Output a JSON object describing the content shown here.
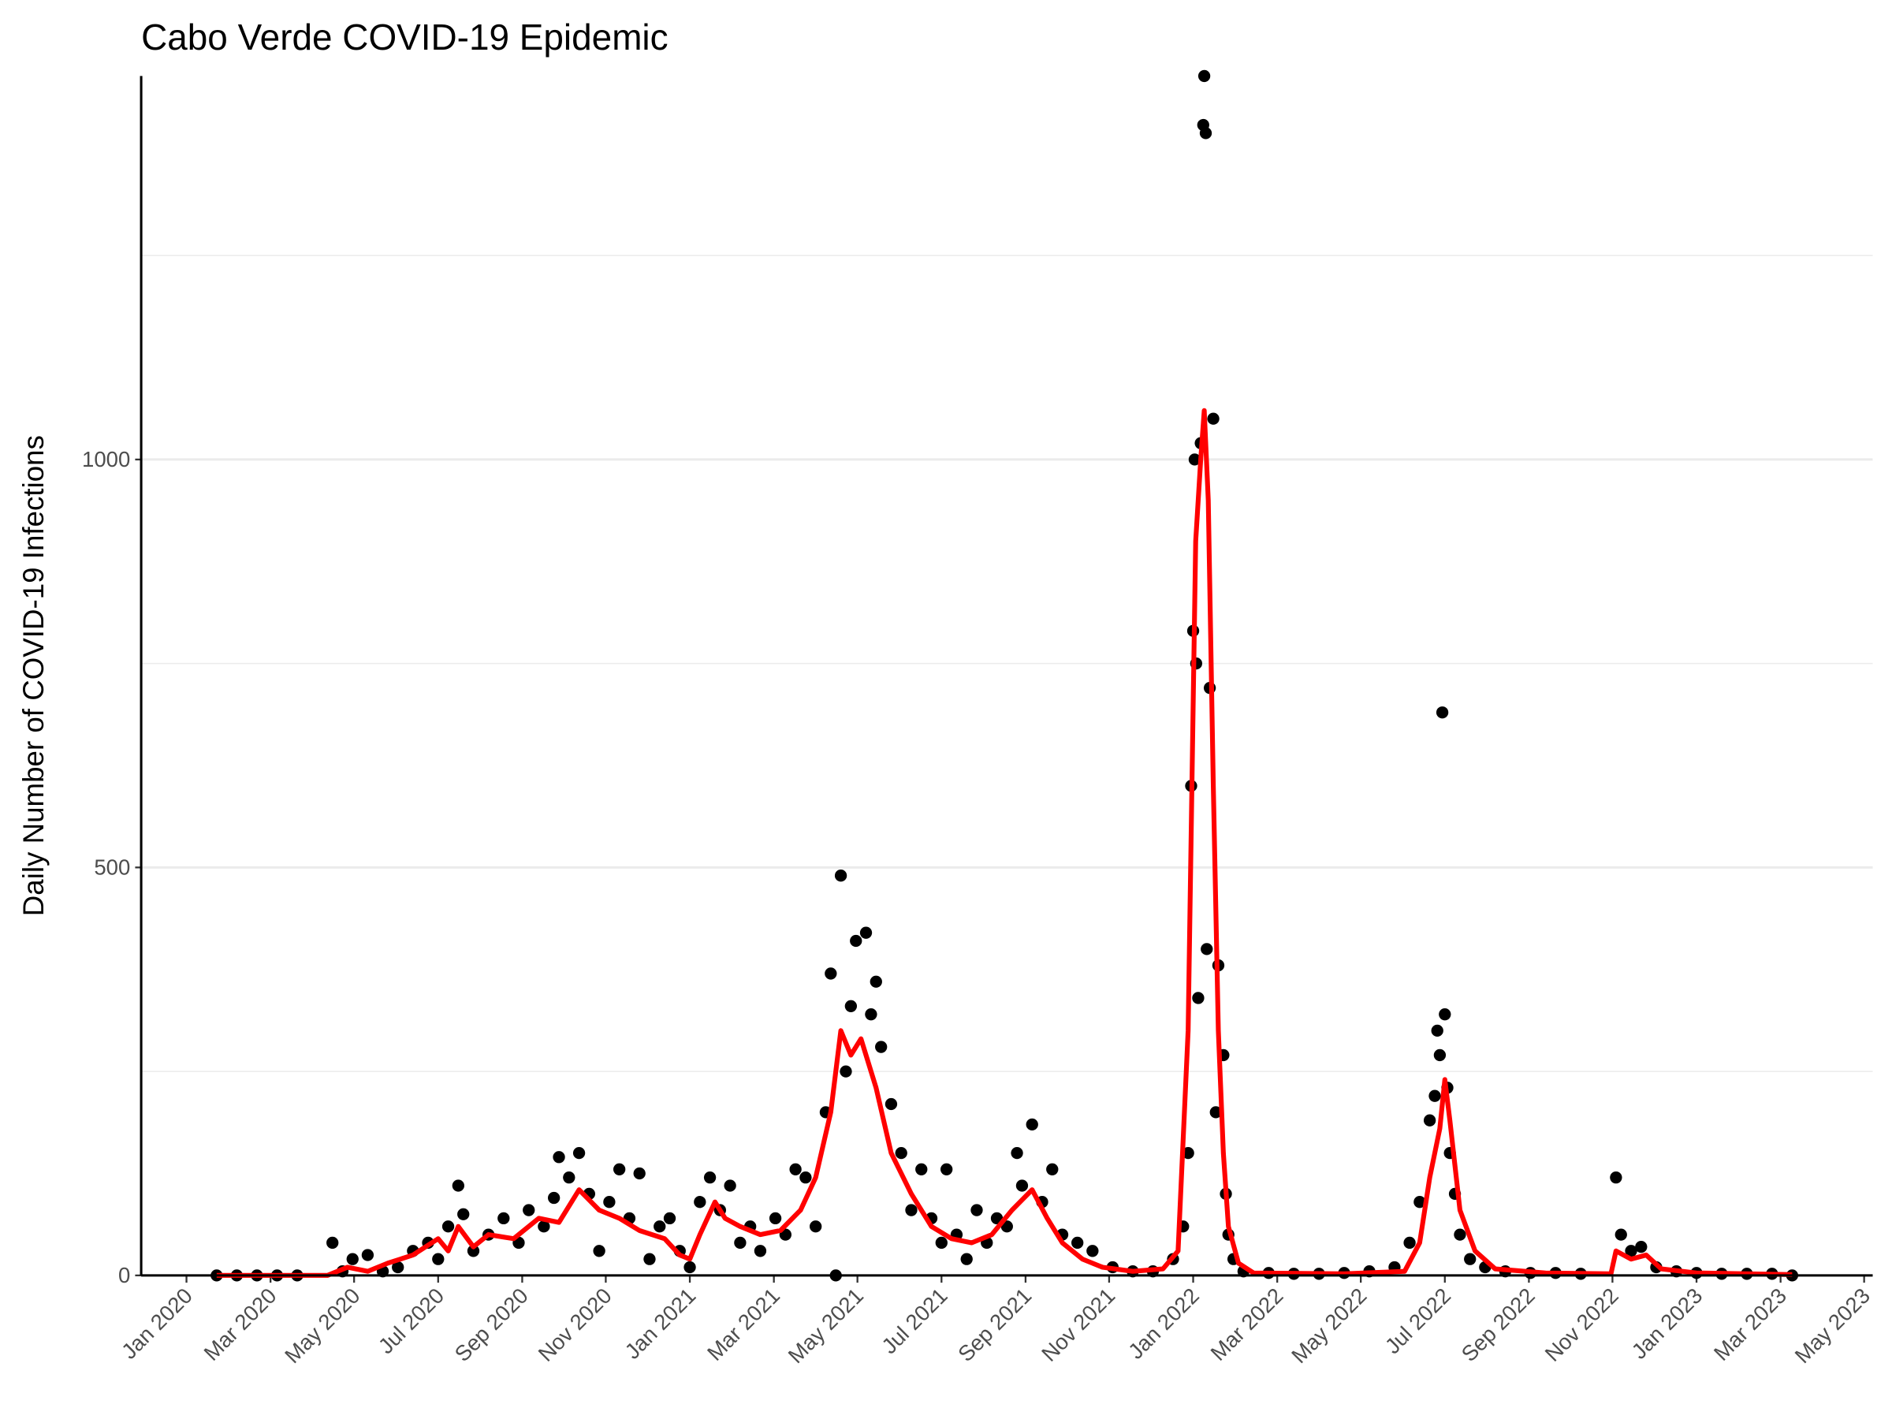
{
  "chart_data": {
    "type": "scatter",
    "title": "Cabo Verde COVID-19 Epidemic",
    "y_label": "Daily Number of COVID-19 Infections",
    "color": "#000000",
    "x": [
      2020.06,
      2020.1,
      2020.14,
      2020.18,
      2020.22,
      2020.29,
      2020.31,
      2020.33,
      2020.36,
      2020.39,
      2020.42,
      2020.45,
      2020.48,
      2020.5,
      2020.52,
      2020.54,
      2020.55,
      2020.57,
      2020.6,
      2020.63,
      2020.66,
      2020.68,
      2020.71,
      2020.73,
      2020.74,
      2020.76,
      2020.78,
      2020.8,
      2020.82,
      2020.84,
      2020.86,
      2020.88,
      2020.9,
      2020.92,
      2020.94,
      2020.96,
      2020.98,
      2021.0,
      2021.02,
      2021.04,
      2021.06,
      2021.08,
      2021.1,
      2021.12,
      2021.14,
      2021.17,
      2021.19,
      2021.21,
      2021.23,
      2021.25,
      2021.27,
      2021.28,
      2021.29,
      2021.3,
      2021.31,
      2021.32,
      2021.33,
      2021.35,
      2021.36,
      2021.37,
      2021.38,
      2021.4,
      2021.42,
      2021.44,
      2021.46,
      2021.48,
      2021.5,
      2021.51,
      2021.53,
      2021.55,
      2021.57,
      2021.59,
      2021.61,
      2021.63,
      2021.65,
      2021.66,
      2021.68,
      2021.7,
      2021.72,
      2021.74,
      2021.77,
      2021.8,
      2021.84,
      2021.88,
      2021.92,
      2021.96,
      2021.98,
      2021.99,
      2021.996,
      2022.0,
      2022.003,
      2022.006,
      2022.01,
      2022.015,
      2022.02,
      2022.022,
      2022.025,
      2022.027,
      2022.033,
      2022.04,
      2022.045,
      2022.05,
      2022.06,
      2022.065,
      2022.07,
      2022.08,
      2022.1,
      2022.15,
      2022.2,
      2022.25,
      2022.3,
      2022.35,
      2022.4,
      2022.43,
      2022.45,
      2022.47,
      2022.48,
      2022.485,
      2022.49,
      2022.495,
      2022.5,
      2022.505,
      2022.51,
      2022.52,
      2022.53,
      2022.55,
      2022.58,
      2022.62,
      2022.67,
      2022.72,
      2022.77,
      2022.84,
      2022.85,
      2022.87,
      2022.89,
      2022.92,
      2022.96,
      2023.0,
      2023.05,
      2023.1,
      2023.15,
      2023.19
    ],
    "values": [
      0,
      0,
      0,
      0,
      0,
      40,
      5,
      20,
      25,
      5,
      10,
      30,
      40,
      20,
      60,
      110,
      75,
      30,
      50,
      70,
      40,
      80,
      60,
      95,
      145,
      120,
      150,
      100,
      30,
      90,
      130,
      70,
      125,
      20,
      60,
      70,
      30,
      10,
      90,
      120,
      80,
      110,
      40,
      60,
      30,
      70,
      50,
      130,
      120,
      60,
      200,
      370,
      0,
      490,
      250,
      330,
      410,
      420,
      320,
      360,
      280,
      210,
      150,
      80,
      130,
      70,
      40,
      130,
      50,
      20,
      80,
      40,
      70,
      60,
      150,
      110,
      185,
      90,
      130,
      50,
      40,
      30,
      10,
      5,
      5,
      20,
      60,
      150,
      600,
      790,
      1000,
      750,
      340,
      1020,
      1410,
      1470,
      1400,
      400,
      720,
      1050,
      200,
      380,
      270,
      100,
      50,
      20,
      5,
      3,
      2,
      2,
      3,
      5,
      10,
      40,
      90,
      190,
      220,
      300,
      270,
      690,
      320,
      230,
      150,
      100,
      50,
      20,
      10,
      5,
      3,
      3,
      2,
      120,
      50,
      30,
      35,
      10,
      5,
      3,
      2,
      2,
      2,
      0
    ],
    "smooth_line": {
      "type": "line",
      "color": "#ff0000",
      "x": [
        2020.06,
        2020.28,
        2020.32,
        2020.36,
        2020.4,
        2020.45,
        2020.5,
        2020.52,
        2020.54,
        2020.57,
        2020.6,
        2020.65,
        2020.7,
        2020.74,
        2020.78,
        2020.82,
        2020.86,
        2020.9,
        2020.95,
        2020.98,
        2021.0,
        2021.02,
        2021.05,
        2021.07,
        2021.1,
        2021.14,
        2021.18,
        2021.22,
        2021.25,
        2021.28,
        2021.3,
        2021.32,
        2021.34,
        2021.37,
        2021.4,
        2021.44,
        2021.48,
        2021.52,
        2021.56,
        2021.6,
        2021.64,
        2021.68,
        2021.71,
        2021.74,
        2021.78,
        2021.82,
        2021.88,
        2021.94,
        2021.97,
        2021.99,
        2022.005,
        2022.015,
        2022.022,
        2022.03,
        2022.04,
        2022.05,
        2022.06,
        2022.07,
        2022.09,
        2022.12,
        2022.3,
        2022.42,
        2022.45,
        2022.47,
        2022.49,
        2022.5,
        2022.51,
        2022.53,
        2022.56,
        2022.6,
        2022.7,
        2022.83,
        2022.84,
        2022.87,
        2022.9,
        2022.93,
        2023.0,
        2023.19
      ],
      "values": [
        0,
        0,
        10,
        5,
        15,
        25,
        45,
        30,
        60,
        35,
        50,
        45,
        70,
        65,
        105,
        80,
        70,
        55,
        45,
        25,
        20,
        50,
        90,
        70,
        60,
        50,
        55,
        80,
        120,
        200,
        300,
        270,
        290,
        230,
        150,
        100,
        60,
        45,
        40,
        50,
        80,
        105,
        70,
        40,
        20,
        10,
        5,
        8,
        30,
        300,
        900,
        1000,
        1060,
        950,
        600,
        300,
        150,
        60,
        15,
        3,
        2,
        5,
        40,
        120,
        180,
        240,
        190,
        80,
        30,
        8,
        3,
        2,
        30,
        20,
        25,
        8,
        3,
        1
      ]
    },
    "xlim": [
      2019.91,
      2023.35
    ],
    "xticks": [
      {
        "value": 2020.0,
        "label": "Jan 2020"
      },
      {
        "value": 2020.167,
        "label": "Mar 2020"
      },
      {
        "value": 2020.333,
        "label": "May 2020"
      },
      {
        "value": 2020.5,
        "label": "Jul 2020"
      },
      {
        "value": 2020.667,
        "label": "Sep 2020"
      },
      {
        "value": 2020.833,
        "label": "Nov 2020"
      },
      {
        "value": 2021.0,
        "label": "Jan 2021"
      },
      {
        "value": 2021.167,
        "label": "Mar 2021"
      },
      {
        "value": 2021.333,
        "label": "May 2021"
      },
      {
        "value": 2021.5,
        "label": "Jul 2021"
      },
      {
        "value": 2021.667,
        "label": "Sep 2021"
      },
      {
        "value": 2021.833,
        "label": "Nov 2021"
      },
      {
        "value": 2022.0,
        "label": "Jan 2022"
      },
      {
        "value": 2022.167,
        "label": "Mar 2022"
      },
      {
        "value": 2022.333,
        "label": "May 2022"
      },
      {
        "value": 2022.5,
        "label": "Jul 2022"
      },
      {
        "value": 2022.667,
        "label": "Sep 2022"
      },
      {
        "value": 2022.833,
        "label": "Nov 2022"
      },
      {
        "value": 2023.0,
        "label": "Jan 2023"
      },
      {
        "value": 2023.167,
        "label": "Mar 2023"
      },
      {
        "value": 2023.333,
        "label": "May 2023"
      }
    ],
    "ylim": [
      0,
      1470
    ],
    "yticks": [
      0,
      500,
      1000
    ],
    "y_minor_grid": [
      250,
      750,
      1250
    ],
    "grid": true
  }
}
